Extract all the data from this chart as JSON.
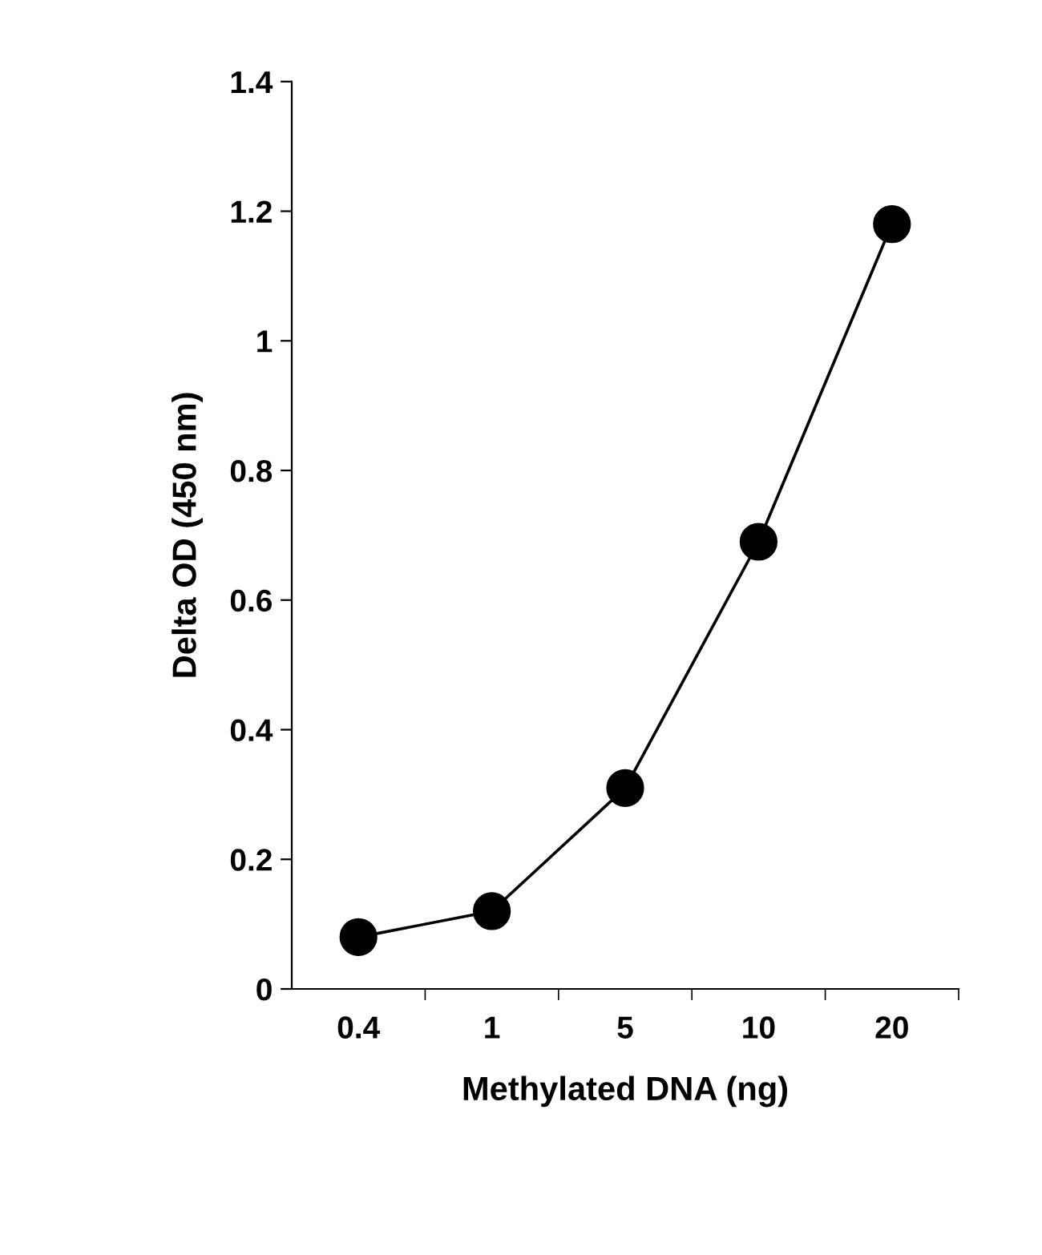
{
  "chart_data": {
    "type": "line",
    "xlabel": "Methylated DNA (ng)",
    "ylabel": "Delta OD (450 nm)",
    "categories": [
      "0.4",
      "1",
      "5",
      "10",
      "20"
    ],
    "series": [
      {
        "color": "#000000",
        "values": [
          0.08,
          0.12,
          0.31,
          0.69,
          1.18
        ]
      }
    ],
    "ylim": [
      0,
      1.4
    ],
    "yticks": [
      0,
      0.2,
      0.4,
      0.6,
      0.8,
      1,
      1.2,
      1.4
    ],
    "grid": false,
    "marker": "circle",
    "line_style": "solid"
  }
}
